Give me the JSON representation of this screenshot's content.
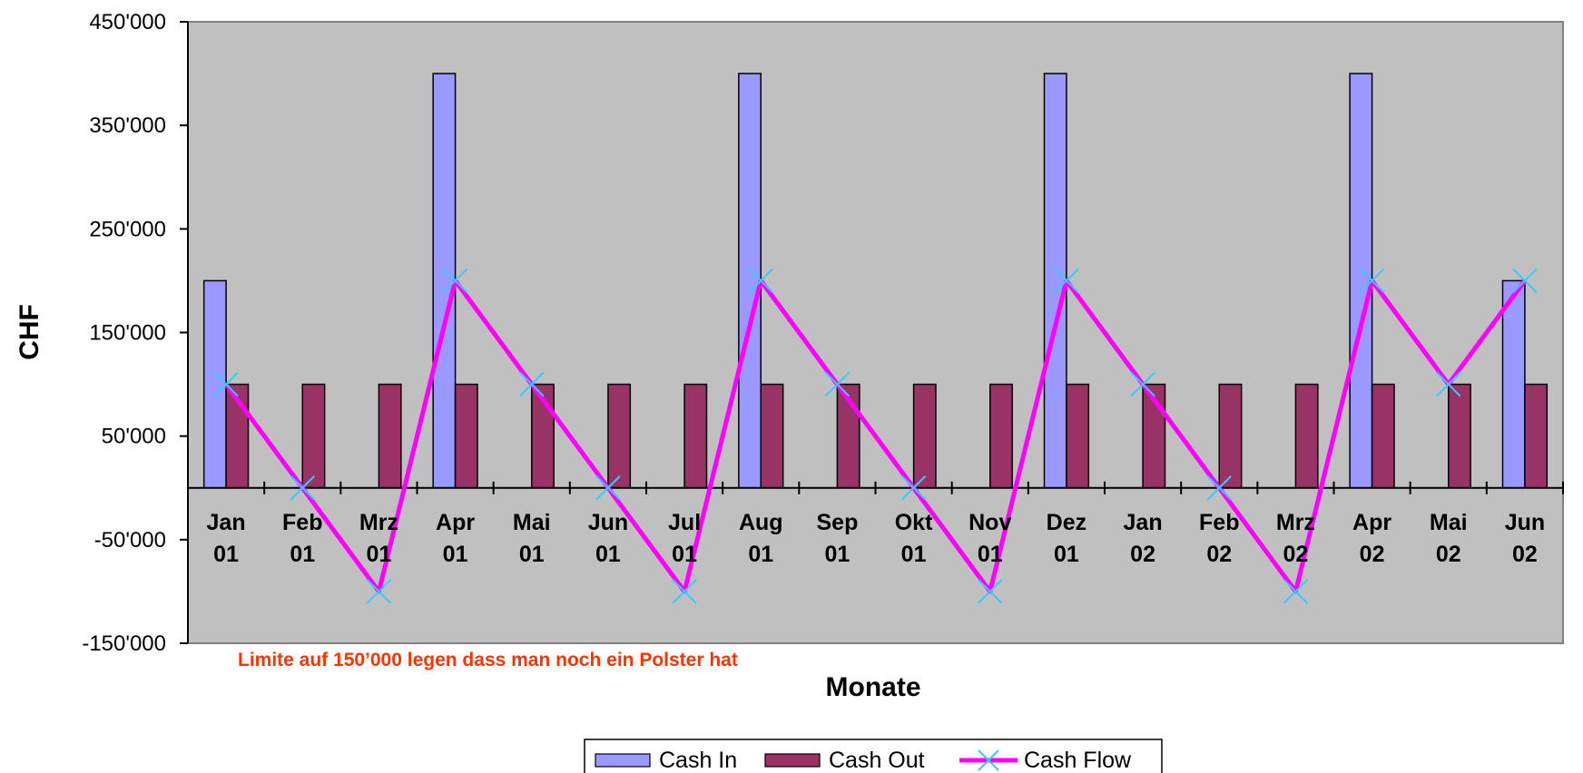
{
  "chart_data": {
    "type": "bar",
    "title": "",
    "xlabel": "Monate",
    "ylabel": "CHF",
    "ylim": [
      -150000,
      450000
    ],
    "yticks": [
      450000,
      350000,
      250000,
      150000,
      50000,
      -50000,
      -150000
    ],
    "ytick_labels": [
      "450'000",
      "350'000",
      "250'000",
      "150'000",
      "50'000",
      "-50'000",
      "-150'000"
    ],
    "categories": [
      [
        "Jan",
        "01"
      ],
      [
        "Feb",
        "01"
      ],
      [
        "Mrz",
        "01"
      ],
      [
        "Apr",
        "01"
      ],
      [
        "Mai",
        "01"
      ],
      [
        "Jun",
        "01"
      ],
      [
        "Jul",
        "01"
      ],
      [
        "Aug",
        "01"
      ],
      [
        "Sep",
        "01"
      ],
      [
        "Okt",
        "01"
      ],
      [
        "Nov",
        "01"
      ],
      [
        "Dez",
        "01"
      ],
      [
        "Jan",
        "02"
      ],
      [
        "Feb",
        "02"
      ],
      [
        "Mrz",
        "02"
      ],
      [
        "Apr",
        "02"
      ],
      [
        "Mai",
        "02"
      ],
      [
        "Jun",
        "02"
      ]
    ],
    "series": [
      {
        "name": "Cash In",
        "kind": "bar",
        "color": "#9999ff",
        "values": [
          200000,
          0,
          0,
          400000,
          0,
          0,
          0,
          400000,
          0,
          0,
          0,
          400000,
          0,
          0,
          0,
          400000,
          0,
          200000
        ]
      },
      {
        "name": "Cash Out",
        "kind": "bar",
        "color": "#993366",
        "values": [
          100000,
          100000,
          100000,
          100000,
          100000,
          100000,
          100000,
          100000,
          100000,
          100000,
          100000,
          100000,
          100000,
          100000,
          100000,
          100000,
          100000,
          100000
        ]
      },
      {
        "name": "Cash Flow",
        "kind": "line",
        "color": "#ff00ff",
        "marker_color": "#33ccff",
        "values": [
          100000,
          0,
          -100000,
          200000,
          100000,
          0,
          -100000,
          200000,
          100000,
          0,
          -100000,
          200000,
          100000,
          0,
          -100000,
          200000,
          100000,
          200000
        ]
      }
    ],
    "grid": false,
    "legend_position": "bottom",
    "plot_background": "#c0c0c0",
    "annotation": {
      "text": "Limite auf 150’000 legen dass man noch ein Polster hat",
      "color": "#ff3300"
    }
  }
}
